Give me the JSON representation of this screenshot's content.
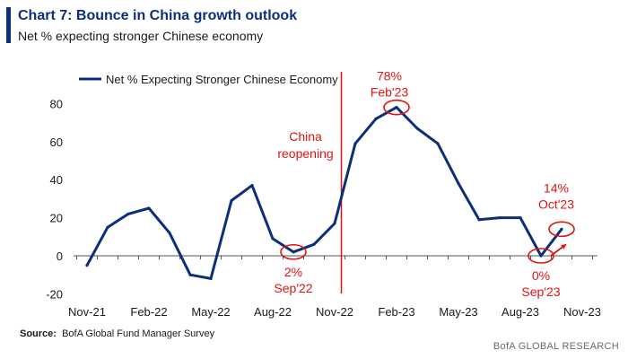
{
  "chart_data": {
    "type": "line",
    "title": "Chart 7: Bounce in China growth outlook",
    "subtitle": "Net % expecting stronger Chinese economy",
    "xlabel": "",
    "ylabel": "",
    "x": [
      "Nov-21",
      "Dec-21",
      "Jan-22",
      "Feb-22",
      "Mar-22",
      "Apr-22",
      "May-22",
      "Jun-22",
      "Jul-22",
      "Aug-22",
      "Sep-22",
      "Oct-22",
      "Nov-22",
      "Dec-22",
      "Jan-23",
      "Feb-23",
      "Mar-23",
      "Apr-23",
      "May-23",
      "Jun-23",
      "Jul-23",
      "Aug-23",
      "Sep-23",
      "Oct-23"
    ],
    "x_tick_labels": [
      "Nov-21",
      "Feb-22",
      "May-22",
      "Aug-22",
      "Nov-22",
      "Feb-23",
      "May-23",
      "Aug-23",
      "Nov-23"
    ],
    "y_ticks": [
      "-20",
      "0",
      "20",
      "40",
      "60",
      "80"
    ],
    "ylim": [
      -20,
      85
    ],
    "series": [
      {
        "name": "Net % Expecting Stronger Chinese Economy",
        "values": [
          -5,
          15,
          22,
          25,
          12,
          -10,
          -12,
          29,
          37,
          9,
          2,
          6,
          17,
          59,
          72,
          78,
          67,
          59,
          38,
          19,
          20,
          20,
          0,
          14
        ],
        "color": "#0b2f7a"
      }
    ],
    "legend_position": "top-left",
    "grid": false,
    "annotations": [
      {
        "id": "china_reopening",
        "text_line1": "China",
        "text_line2": "reopening",
        "x_index": 12.5,
        "color": "#e0140f"
      },
      {
        "id": "sep22",
        "value_text": "2%",
        "date_text": "Sep'22",
        "x_index": 10,
        "y": 2
      },
      {
        "id": "feb23",
        "value_text": "78%",
        "date_text": "Feb'23",
        "x_index": 15,
        "y": 78
      },
      {
        "id": "sep23",
        "value_text": "0%",
        "date_text": "Sep'23",
        "x_index": 22,
        "y": 0
      },
      {
        "id": "oct23",
        "value_text": "14%",
        "date_text": "Oct'23",
        "x_index": 23,
        "y": 14
      }
    ],
    "annotation_color": "#e0140f"
  },
  "source": {
    "label": "Source:",
    "text": "BofA Global Fund Manager Survey"
  },
  "brand": "BofA GLOBAL RESEARCH"
}
